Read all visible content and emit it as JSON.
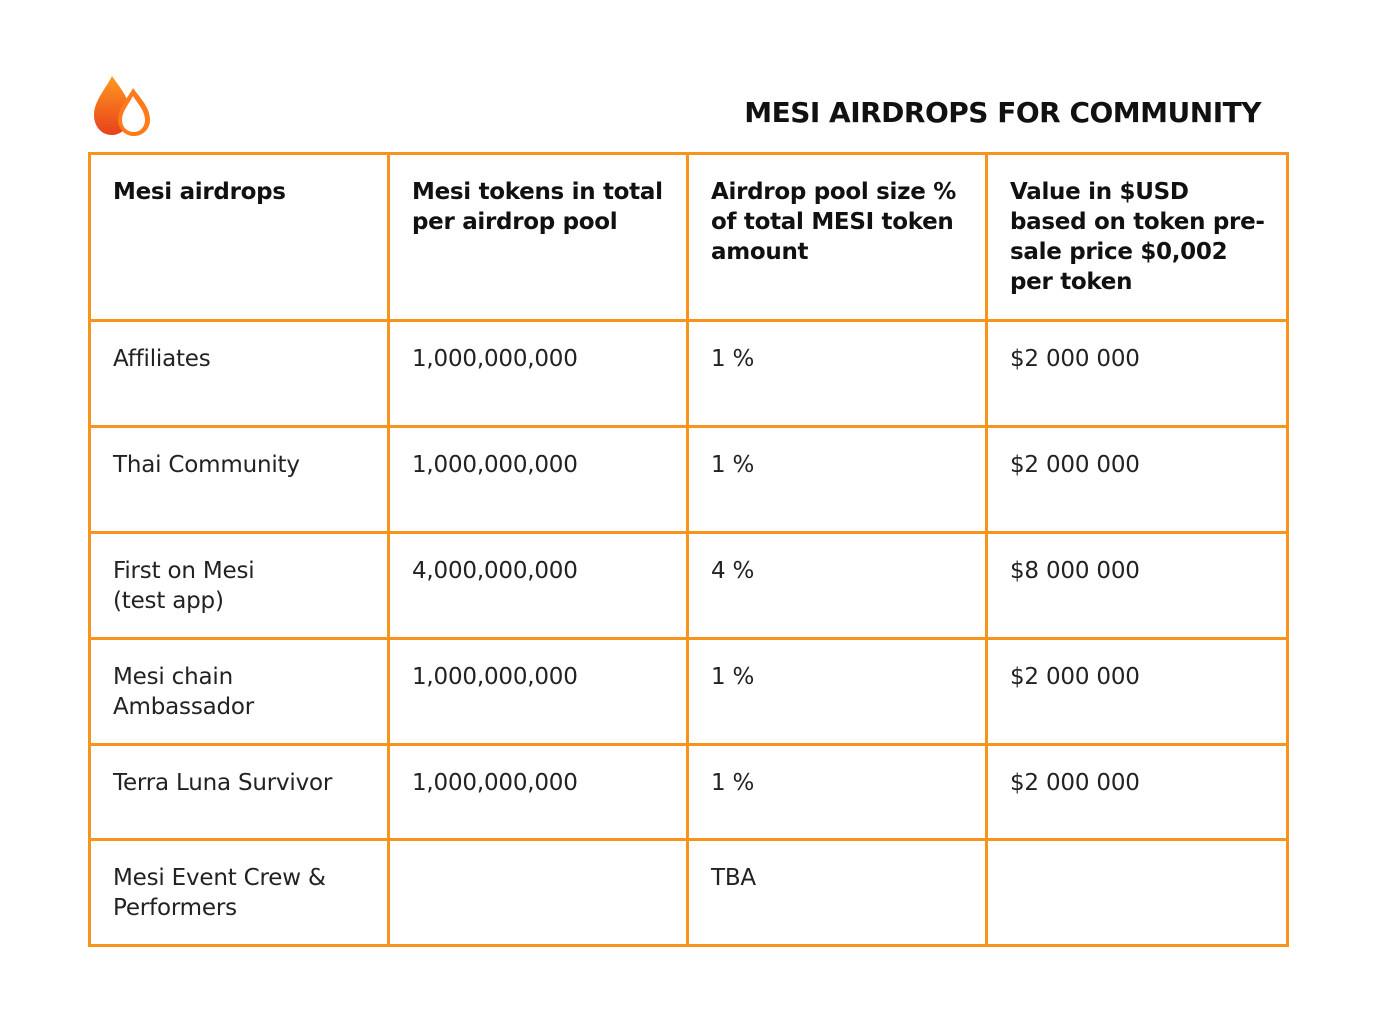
{
  "header": {
    "title": "MESI AIRDROPS FOR COMMUNITY",
    "logo_icon": "flame-drop-logo-icon",
    "accent_color": "#F7941D",
    "logo_color_dark": "#E8401C",
    "logo_color_light": "#FF7A1A"
  },
  "table": {
    "columns": [
      "Mesi airdrops",
      "Mesi tokens in total per airdrop pool",
      "Airdrop pool size % of total MESI token amount",
      "Value in $USD based on token pre-sale price $0,002 per token"
    ],
    "rows": [
      {
        "name": "Affiliates",
        "tokens": "1,000,000,000",
        "percent": "1 %",
        "value": "$2 000 000"
      },
      {
        "name": "Thai Community",
        "tokens": "1,000,000,000",
        "percent": "1 %",
        "value": "$2 000 000"
      },
      {
        "name": "First on Mesi\n(test app)",
        "tokens": "4,000,000,000",
        "percent": "4 %",
        "value": "$8 000 000"
      },
      {
        "name": "Mesi chain\nAmbassador",
        "tokens": "1,000,000,000",
        "percent": "1 %",
        "value": "$2 000 000"
      },
      {
        "name": "Terra Luna Survivor",
        "tokens": "1,000,000,000",
        "percent": "1 %",
        "value": "$2 000 000"
      },
      {
        "name": "Mesi Event Crew &\nPerformers",
        "tokens": "",
        "percent": "TBA",
        "value": ""
      }
    ]
  }
}
